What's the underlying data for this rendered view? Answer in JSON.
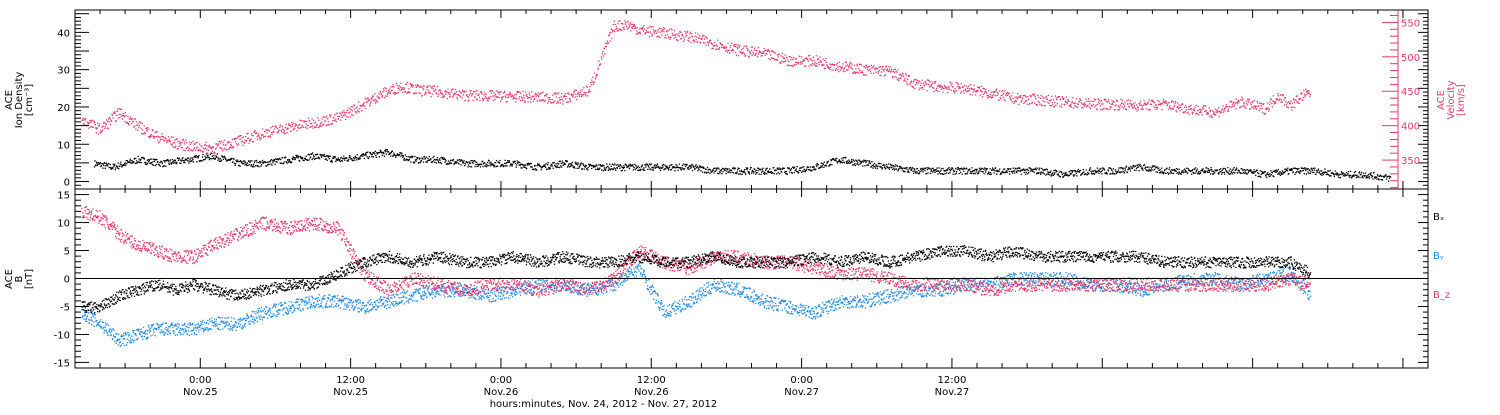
{
  "colors": {
    "axis": "#000000",
    "black_series": "#000000",
    "pink": "#e8376a",
    "blue": "#1f8be6"
  },
  "chart_data": [
    {
      "type": "scatter",
      "panel": "top",
      "ylabel_lines": [
        "ACE",
        "Ion Density",
        "[cm⁻³]"
      ],
      "y2label_lines": [
        "ACE",
        "Velocity",
        "[km/s]"
      ],
      "ylim": [
        -2,
        46
      ],
      "y_ticks": [
        0,
        10,
        20,
        30,
        40
      ],
      "y_tick_labels": [
        "0",
        "10",
        "20",
        "30",
        "40"
      ],
      "y2lim": [
        308,
        568
      ],
      "y2_ticks": [
        350,
        400,
        450,
        500,
        550
      ],
      "y2_tick_labels": [
        "350",
        "400",
        "450",
        "500",
        "550"
      ],
      "series": [
        {
          "color_key": "black_series",
          "axis": "left",
          "x": [
            -8.5,
            -7,
            -5,
            -3,
            -1,
            1,
            3,
            5,
            7,
            9,
            11,
            13,
            15,
            17,
            19,
            21,
            23,
            25,
            27,
            29,
            31,
            33,
            35,
            37,
            39,
            41,
            43,
            45,
            47,
            49,
            51,
            53,
            55,
            57,
            59,
            61,
            63,
            65,
            67,
            69,
            71,
            73,
            75,
            77,
            79,
            81,
            83,
            85,
            87,
            89,
            91,
            93,
            95
          ],
          "y": [
            5,
            4,
            6,
            5,
            6,
            7,
            5,
            5,
            6,
            7,
            6,
            7,
            8,
            6,
            6,
            5,
            5,
            5,
            4,
            5,
            4,
            4,
            4,
            4,
            4,
            3,
            3,
            3,
            3,
            4,
            6,
            5,
            4,
            3,
            3,
            3,
            3,
            3,
            3,
            2,
            3,
            3,
            4,
            3,
            3,
            3,
            3,
            2,
            3,
            3,
            2,
            2,
            1
          ]
        },
        {
          "color_key": "pink",
          "axis": "right",
          "x": [
            -9.5,
            -8,
            -6.5,
            -5,
            -3.5,
            -2,
            -0.5,
            1,
            3,
            5,
            7,
            9,
            11,
            13,
            14.5,
            16,
            17.5,
            19,
            21,
            23,
            25,
            27,
            29,
            31,
            33,
            34,
            35,
            37,
            39,
            41,
            43,
            45,
            47,
            49,
            51,
            53,
            55,
            57,
            59,
            61,
            63,
            65,
            67,
            69,
            71,
            73,
            75,
            77,
            79,
            81,
            83,
            85,
            86,
            87,
            88,
            88.6
          ],
          "y": [
            410,
            395,
            420,
            400,
            385,
            375,
            370,
            368,
            378,
            390,
            398,
            405,
            412,
            432,
            447,
            458,
            452,
            450,
            445,
            444,
            443,
            442,
            440,
            452,
            545,
            548,
            540,
            535,
            530,
            520,
            510,
            505,
            495,
            495,
            487,
            482,
            480,
            462,
            457,
            455,
            448,
            440,
            438,
            435,
            432,
            432,
            430,
            432,
            425,
            420,
            435,
            425,
            445,
            430,
            445,
            448
          ]
        }
      ]
    },
    {
      "type": "scatter",
      "panel": "bottom",
      "ylabel_lines": [
        "ACE",
        "B",
        "[nT]"
      ],
      "ylim": [
        -16,
        16
      ],
      "y_ticks": [
        -15,
        -10,
        -5,
        0,
        5,
        10,
        15
      ],
      "y_tick_labels": [
        "-15",
        "-10",
        "-5",
        "0",
        "5",
        "10",
        "15"
      ],
      "legend": [
        "Bₓ",
        "Bᵧ",
        "B_z"
      ],
      "legend_placement": "right",
      "zero_line": true,
      "series": [
        {
          "color_key": "black_series",
          "legend_index": 0,
          "x": [
            -9.5,
            -8,
            -6.5,
            -5,
            -3.5,
            -2,
            -0.5,
            1,
            3,
            5,
            7,
            9,
            11,
            13,
            15,
            17,
            19,
            21,
            23,
            25,
            27,
            29,
            31,
            33,
            35,
            37,
            39,
            41,
            43,
            45,
            47,
            49,
            51,
            53,
            55,
            57,
            59,
            61,
            63,
            65,
            67,
            69,
            71,
            73,
            75,
            77,
            79,
            81,
            83,
            85,
            87,
            88.6
          ],
          "y": [
            -5,
            -5,
            -3,
            -2,
            -1,
            -2,
            -1,
            -2,
            -3,
            -2,
            -1,
            -1,
            1,
            3,
            4,
            3,
            4,
            3,
            3,
            4,
            3,
            4,
            3,
            3,
            4,
            3,
            3,
            4,
            3,
            3,
            3,
            4,
            3,
            4,
            3,
            4,
            5,
            5,
            4,
            5,
            4,
            4,
            4,
            4,
            4,
            3,
            3,
            3,
            3,
            3,
            3,
            1
          ]
        },
        {
          "color_key": "blue",
          "legend_index": 1,
          "x": [
            -9.5,
            -8,
            -6.5,
            -5,
            -3.5,
            -2,
            -0.5,
            1,
            3,
            5,
            7,
            9,
            11,
            13,
            15,
            17,
            19,
            21,
            23,
            25,
            27,
            29,
            31,
            33,
            35,
            37,
            39,
            41,
            43,
            45,
            47,
            49,
            51,
            53,
            55,
            57,
            59,
            61,
            63,
            65,
            67,
            69,
            71,
            73,
            75,
            77,
            79,
            81,
            83,
            85,
            87,
            88.6
          ],
          "y": [
            -6,
            -8,
            -11,
            -10,
            -9,
            -9,
            -9,
            -8,
            -8,
            -6,
            -5,
            -4,
            -4,
            -5,
            -4,
            -3,
            -2,
            -2,
            -3,
            -2,
            -1,
            -1,
            -2,
            -1,
            2,
            -6,
            -4,
            -1,
            -2,
            -4,
            -5,
            -6,
            -4,
            -4,
            -3,
            -2,
            -2,
            -1,
            -1,
            0,
            0,
            0,
            -1,
            -1,
            -2,
            -1,
            0,
            0,
            -1,
            0,
            1,
            -3
          ]
        },
        {
          "color_key": "pink",
          "legend_index": 2,
          "x": [
            -9.5,
            -8,
            -6.5,
            -5,
            -3.5,
            -2,
            -0.5,
            1,
            3,
            5,
            7,
            9,
            11,
            13,
            15,
            17,
            19,
            21,
            23,
            25,
            27,
            29,
            31,
            33,
            35,
            37,
            39,
            41,
            43,
            45,
            47,
            49,
            51,
            53,
            55,
            57,
            59,
            61,
            63,
            65,
            67,
            69,
            71,
            73,
            75,
            77,
            79,
            81,
            83,
            85,
            87,
            88.6
          ],
          "y": [
            12,
            11,
            8,
            6,
            5,
            4,
            4,
            6,
            8,
            10,
            9,
            10,
            9,
            1,
            -2,
            0,
            -1,
            -2,
            -1,
            -1,
            -2,
            -1,
            -2,
            0,
            5,
            3,
            2,
            4,
            4,
            3,
            3,
            2,
            1,
            1,
            0,
            -1,
            -1,
            -1,
            -2,
            -1,
            -1,
            -1,
            -1,
            -1,
            -1,
            -1,
            -1,
            -1,
            -1,
            -1,
            0,
            -1
          ]
        }
      ]
    }
  ],
  "x_axis": {
    "range_hours": [
      -10,
      98
    ],
    "ticks": [
      {
        "hour": 0,
        "time": "0:00",
        "date": "Nov.25"
      },
      {
        "hour": 12,
        "time": "12:00",
        "date": "Nov.25"
      },
      {
        "hour": 24,
        "time": "0:00",
        "date": "Nov.26"
      },
      {
        "hour": 36,
        "time": "12:00",
        "date": "Nov.26"
      },
      {
        "hour": 48,
        "time": "0:00",
        "date": "Nov.27"
      },
      {
        "hour": 60,
        "time": "12:00",
        "date": "Nov.27"
      }
    ],
    "xlabel": "hours:minutes, Nov. 24, 2012 - Nov. 27, 2012"
  }
}
